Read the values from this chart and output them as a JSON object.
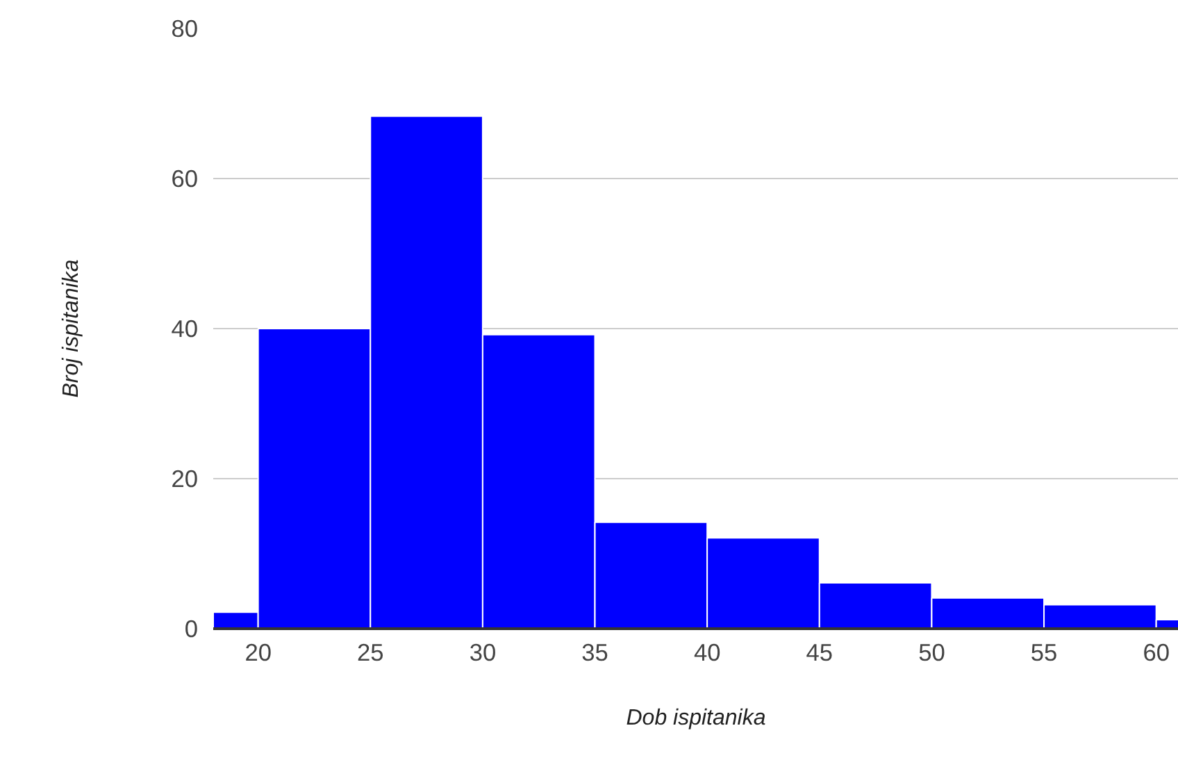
{
  "chart_data": {
    "type": "histogram",
    "xlabel": "Dob ispitanika",
    "ylabel": "Broj ispitanika",
    "bins": [
      18,
      20,
      25,
      30,
      35,
      40,
      45,
      50,
      55,
      60,
      61
    ],
    "values": [
      2.2,
      40,
      68.3,
      39.2,
      14.2,
      12.1,
      6.1,
      4.1,
      3.2,
      1.2
    ],
    "color": "#0000ff",
    "xlim": [
      18,
      61
    ],
    "xticks": [
      20,
      25,
      30,
      35,
      40,
      45,
      50,
      55,
      60
    ],
    "ylim": [
      0,
      80
    ],
    "yticks": [
      0,
      20,
      40,
      60,
      80
    ],
    "grid": "y"
  }
}
